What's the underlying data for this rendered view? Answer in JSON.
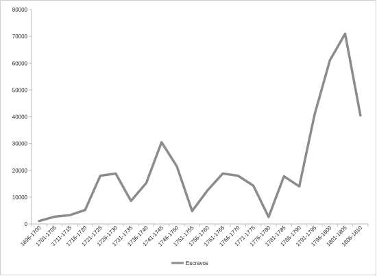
{
  "chart_data": {
    "type": "line",
    "categories": [
      "1696-1700",
      "1701-1705",
      "1711-1715",
      "1716-1720",
      "1721-1725",
      "1726-1730",
      "1731-1735",
      "1736-1740",
      "1741-1745",
      "1746-1750",
      "1751-1755",
      "1756-1760",
      "1761-1765",
      "1766-1770",
      "1771-1775",
      "1776-1780",
      "1781-1785",
      "1786-1790",
      "1791-1795",
      "1796-1800",
      "1801-1805",
      "1806-1810"
    ],
    "series": [
      {
        "name": "Escravos",
        "values": [
          1100,
          2700,
          3300,
          5200,
          18000,
          18800,
          8600,
          15300,
          30500,
          21500,
          4800,
          12500,
          18800,
          18000,
          14300,
          2600,
          17800,
          14000,
          40800,
          61000,
          71000,
          40500
        ]
      }
    ],
    "ylim": [
      0,
      80000
    ],
    "yticks": [
      0,
      10000,
      20000,
      30000,
      40000,
      50000,
      60000,
      70000,
      80000
    ],
    "grid": false,
    "legend": "bottom",
    "colors": {
      "series": "#8c8c8c",
      "axis": "#bdbdbd"
    }
  }
}
